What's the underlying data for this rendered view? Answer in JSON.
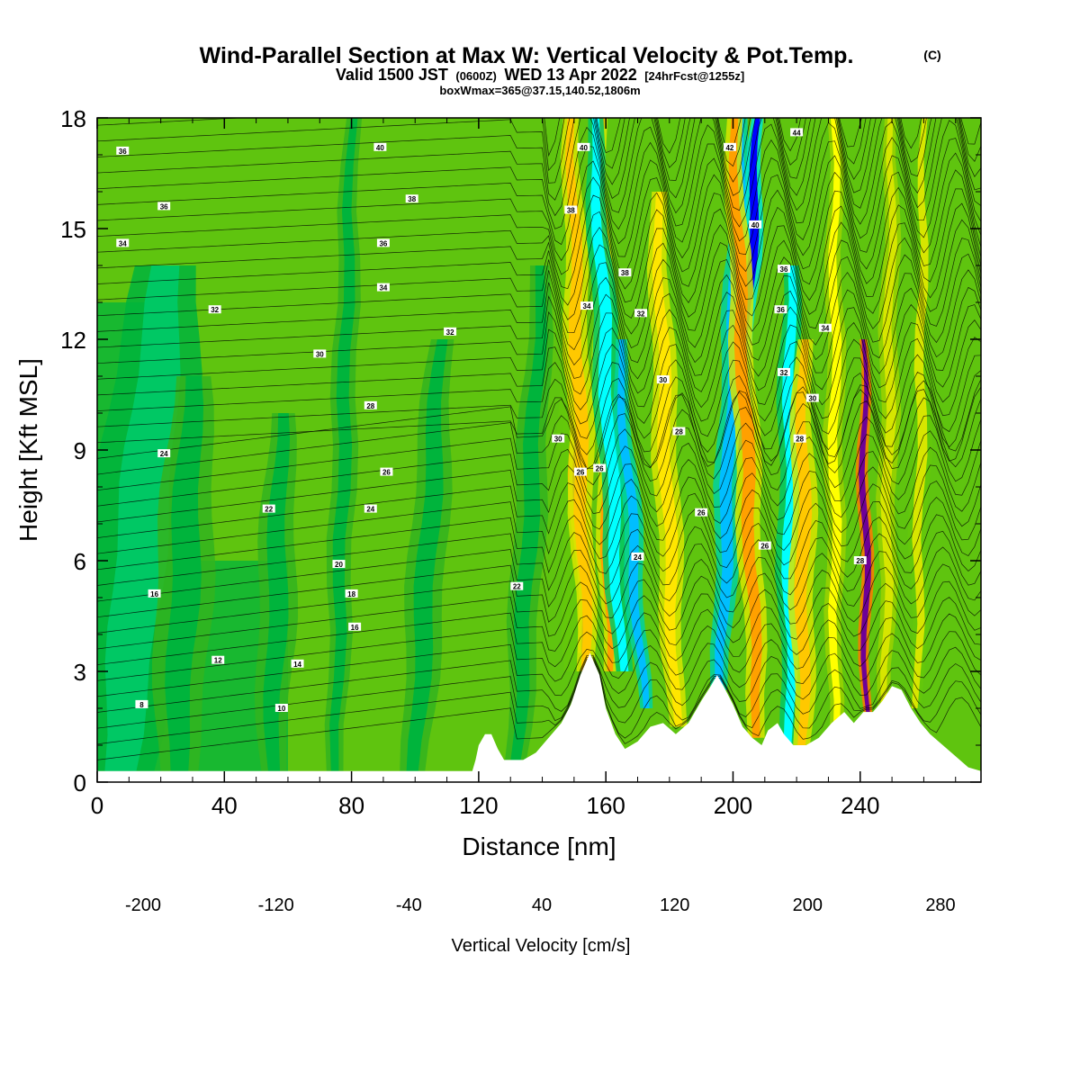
{
  "header": {
    "title": "Wind-Parallel Section at Max W: Vertical Velocity & Pot.Temp.",
    "copyright": "(C)",
    "valid_prefix": "Valid 1500 JST",
    "valid_utc": "(0600Z)",
    "valid_date": "WED 13 Apr 2022",
    "forecast": "[24hrFcst@1255z]",
    "box_info": "boxWmax=365@37.15,140.52,1806m"
  },
  "chart_data": {
    "type": "heatmap",
    "title": "Wind-Parallel Section at Max W: Vertical Velocity & Pot.Temp.",
    "xlabel": "Distance [nm]",
    "ylabel": "Height [Kft MSL]",
    "xlim": [
      0,
      278
    ],
    "ylim": [
      0,
      18
    ],
    "x_ticks": [
      0,
      40,
      80,
      120,
      160,
      200,
      240
    ],
    "y_ticks": [
      0,
      3,
      6,
      9,
      12,
      15,
      18
    ],
    "colorbar": {
      "label": "Vertical Velocity [cm/s]",
      "min": -200,
      "max": 320,
      "step": 20,
      "tick_values": [
        -200,
        -120,
        -40,
        40,
        120,
        200,
        280
      ],
      "tick_labels": [
        "-200",
        "-120",
        "-40",
        "40",
        "120",
        "200",
        "280"
      ],
      "colors": [
        "#0000ff",
        "#0a50ff",
        "#0a8cff",
        "#00beff",
        "#00ffff",
        "#00e6d2",
        "#00d2a0",
        "#00c864",
        "#00b43c",
        "#32b41e",
        "#64c80a",
        "#9bd200",
        "#d7e600",
        "#ffff00",
        "#ffe600",
        "#ffc800",
        "#ffa000",
        "#ff7800",
        "#ff5000",
        "#ff1e00",
        "#dc0032",
        "#b4005a",
        "#8c0078",
        "#6e0096"
      ]
    },
    "terrain": [
      [
        0,
        0.3
      ],
      [
        30,
        0.3
      ],
      [
        60,
        0.3
      ],
      [
        90,
        0.3
      ],
      [
        118,
        0.3
      ],
      [
        119,
        0.6
      ],
      [
        120,
        1.0
      ],
      [
        122,
        1.3
      ],
      [
        124,
        1.3
      ],
      [
        126,
        0.9
      ],
      [
        128,
        0.6
      ],
      [
        134,
        0.6
      ],
      [
        138,
        0.8
      ],
      [
        142,
        1.2
      ],
      [
        146,
        1.6
      ],
      [
        149,
        2.1
      ],
      [
        152,
        2.9
      ],
      [
        155,
        3.5
      ],
      [
        158,
        2.9
      ],
      [
        160,
        2.0
      ],
      [
        163,
        1.3
      ],
      [
        166,
        0.9
      ],
      [
        170,
        1.1
      ],
      [
        174,
        1.5
      ],
      [
        178,
        1.6
      ],
      [
        182,
        1.3
      ],
      [
        186,
        1.6
      ],
      [
        190,
        2.2
      ],
      [
        193,
        2.6
      ],
      [
        195,
        2.9
      ],
      [
        197,
        2.6
      ],
      [
        200,
        2.1
      ],
      [
        203,
        1.5
      ],
      [
        206,
        1.2
      ],
      [
        209,
        1.0
      ],
      [
        211,
        1.4
      ],
      [
        214,
        1.6
      ],
      [
        216,
        1.3
      ],
      [
        219,
        1.0
      ],
      [
        223,
        1.0
      ],
      [
        227,
        1.2
      ],
      [
        231,
        1.6
      ],
      [
        235,
        1.9
      ],
      [
        238,
        1.6
      ],
      [
        241,
        1.9
      ],
      [
        244,
        1.9
      ],
      [
        247,
        2.2
      ],
      [
        250,
        2.6
      ],
      [
        253,
        2.5
      ],
      [
        256,
        2.0
      ],
      [
        259,
        1.6
      ],
      [
        262,
        1.3
      ],
      [
        266,
        1.0
      ],
      [
        270,
        0.7
      ],
      [
        274,
        0.4
      ],
      [
        278,
        0.3
      ]
    ],
    "vertical_velocity_features": [
      {
        "x": 7,
        "x_top": 22,
        "width": 16,
        "z_low": 0.3,
        "z_high": 14,
        "w": -45
      },
      {
        "x": 25,
        "x_top": 30,
        "width": 9,
        "z_low": 0.3,
        "z_high": 11,
        "w": -30
      },
      {
        "x": 55,
        "x_top": 58,
        "width": 6,
        "z_low": 0.3,
        "z_high": 10,
        "w": -35
      },
      {
        "x": 75,
        "x_top": 80,
        "width": 4,
        "z_low": 0.3,
        "z_high": 18,
        "w": -35
      },
      {
        "x": 100,
        "x_top": 108,
        "width": 6,
        "z_low": 0.3,
        "z_high": 12,
        "w": -30
      },
      {
        "x": 132,
        "x_top": 140,
        "width": 5,
        "z_low": 0.5,
        "z_high": 14,
        "w": -30
      },
      {
        "x": 150,
        "x_top": 148,
        "width": 4,
        "z_low": 3,
        "z_high": 16,
        "w": 15
      },
      {
        "x": 154,
        "x_top": 150,
        "width": 3,
        "z_low": 3.5,
        "z_high": 12,
        "w": 230
      },
      {
        "x": 154,
        "x_top": 149,
        "width": 4,
        "z_low": 3,
        "z_high": 18,
        "w": 110
      },
      {
        "x": 161,
        "x_top": 158,
        "width": 3,
        "z_low": 3,
        "z_high": 18,
        "w": 120
      },
      {
        "x": 165,
        "x_top": 156,
        "width": 4,
        "z_low": 3,
        "z_high": 18,
        "w": -110
      },
      {
        "x": 172,
        "x_top": 164,
        "width": 3,
        "z_low": 2,
        "z_high": 12,
        "w": -130
      },
      {
        "x": 182,
        "x_top": 176,
        "width": 4,
        "z_low": 1.5,
        "z_high": 16,
        "w": 90
      },
      {
        "x": 196,
        "x_top": 203,
        "width": 4,
        "z_low": 2.5,
        "z_high": 18,
        "w": -140
      },
      {
        "x": 202,
        "x_top": 208,
        "width": 3,
        "z_low": 9,
        "z_high": 18,
        "w": -200
      },
      {
        "x": 208,
        "x_top": 200,
        "width": 4,
        "z_low": 1.2,
        "z_high": 18,
        "w": 120
      },
      {
        "x": 218,
        "x_top": 218,
        "width": 4,
        "z_low": 1,
        "z_high": 14,
        "w": -110
      },
      {
        "x": 222,
        "x_top": 222,
        "width": 4,
        "z_low": 1,
        "z_high": 12,
        "w": 110
      },
      {
        "x": 232,
        "x_top": 232,
        "width": 3,
        "z_low": 1,
        "z_high": 18,
        "w": 60
      },
      {
        "x": 242,
        "x_top": 241,
        "width": 2,
        "z_low": 1.9,
        "z_high": 12,
        "w": 330
      },
      {
        "x": 248,
        "x_top": 250,
        "width": 3,
        "z_low": 2,
        "z_high": 18,
        "w": 50
      },
      {
        "x": 258,
        "x_top": 260,
        "width": 3,
        "z_low": 2,
        "z_high": 18,
        "w": 40
      }
    ],
    "theta_contour_levels": [
      8,
      10,
      12,
      14,
      16,
      18,
      20,
      22,
      24,
      26,
      28,
      30,
      32,
      34,
      36,
      38,
      40,
      42,
      44
    ],
    "theta_labels": [
      {
        "text": "36",
        "x": 8,
        "y": 17.1
      },
      {
        "text": "36",
        "x": 21,
        "y": 15.6
      },
      {
        "text": "34",
        "x": 8,
        "y": 14.6
      },
      {
        "text": "40",
        "x": 89,
        "y": 17.2
      },
      {
        "text": "38",
        "x": 99,
        "y": 15.8
      },
      {
        "text": "36",
        "x": 90,
        "y": 14.6
      },
      {
        "text": "34",
        "x": 90,
        "y": 13.4
      },
      {
        "text": "32",
        "x": 37,
        "y": 12.8
      },
      {
        "text": "32",
        "x": 111,
        "y": 12.2
      },
      {
        "text": "30",
        "x": 70,
        "y": 11.6
      },
      {
        "text": "28",
        "x": 86,
        "y": 10.2
      },
      {
        "text": "24",
        "x": 21,
        "y": 8.9
      },
      {
        "text": "26",
        "x": 91,
        "y": 8.4
      },
      {
        "text": "22",
        "x": 54,
        "y": 7.4
      },
      {
        "text": "24",
        "x": 86,
        "y": 7.4
      },
      {
        "text": "20",
        "x": 76,
        "y": 5.9
      },
      {
        "text": "16",
        "x": 18,
        "y": 5.1
      },
      {
        "text": "18",
        "x": 80,
        "y": 5.1
      },
      {
        "text": "16",
        "x": 81,
        "y": 4.2
      },
      {
        "text": "12",
        "x": 38,
        "y": 3.3
      },
      {
        "text": "14",
        "x": 63,
        "y": 3.2
      },
      {
        "text": "8",
        "x": 14,
        "y": 2.1
      },
      {
        "text": "10",
        "x": 58,
        "y": 2.0
      },
      {
        "text": "22",
        "x": 132,
        "y": 5.3
      },
      {
        "text": "30",
        "x": 145,
        "y": 9.3
      },
      {
        "text": "26",
        "x": 152,
        "y": 8.4
      },
      {
        "text": "26",
        "x": 158,
        "y": 8.5
      },
      {
        "text": "24",
        "x": 170,
        "y": 6.1
      },
      {
        "text": "40",
        "x": 153,
        "y": 17.2
      },
      {
        "text": "38",
        "x": 149,
        "y": 15.5
      },
      {
        "text": "38",
        "x": 166,
        "y": 13.8
      },
      {
        "text": "34",
        "x": 154,
        "y": 12.9
      },
      {
        "text": "32",
        "x": 171,
        "y": 12.7
      },
      {
        "text": "30",
        "x": 178,
        "y": 10.9
      },
      {
        "text": "28",
        "x": 183,
        "y": 9.5
      },
      {
        "text": "26",
        "x": 190,
        "y": 7.3
      },
      {
        "text": "26",
        "x": 210,
        "y": 6.4
      },
      {
        "text": "42",
        "x": 199,
        "y": 17.2
      },
      {
        "text": "44",
        "x": 220,
        "y": 17.6
      },
      {
        "text": "40",
        "x": 207,
        "y": 15.1
      },
      {
        "text": "36",
        "x": 216,
        "y": 13.9
      },
      {
        "text": "36",
        "x": 215,
        "y": 12.8
      },
      {
        "text": "34",
        "x": 229,
        "y": 12.3
      },
      {
        "text": "32",
        "x": 216,
        "y": 11.1
      },
      {
        "text": "30",
        "x": 225,
        "y": 10.4
      },
      {
        "text": "28",
        "x": 221,
        "y": 9.3
      },
      {
        "text": "28",
        "x": 240,
        "y": 6.0
      }
    ]
  }
}
